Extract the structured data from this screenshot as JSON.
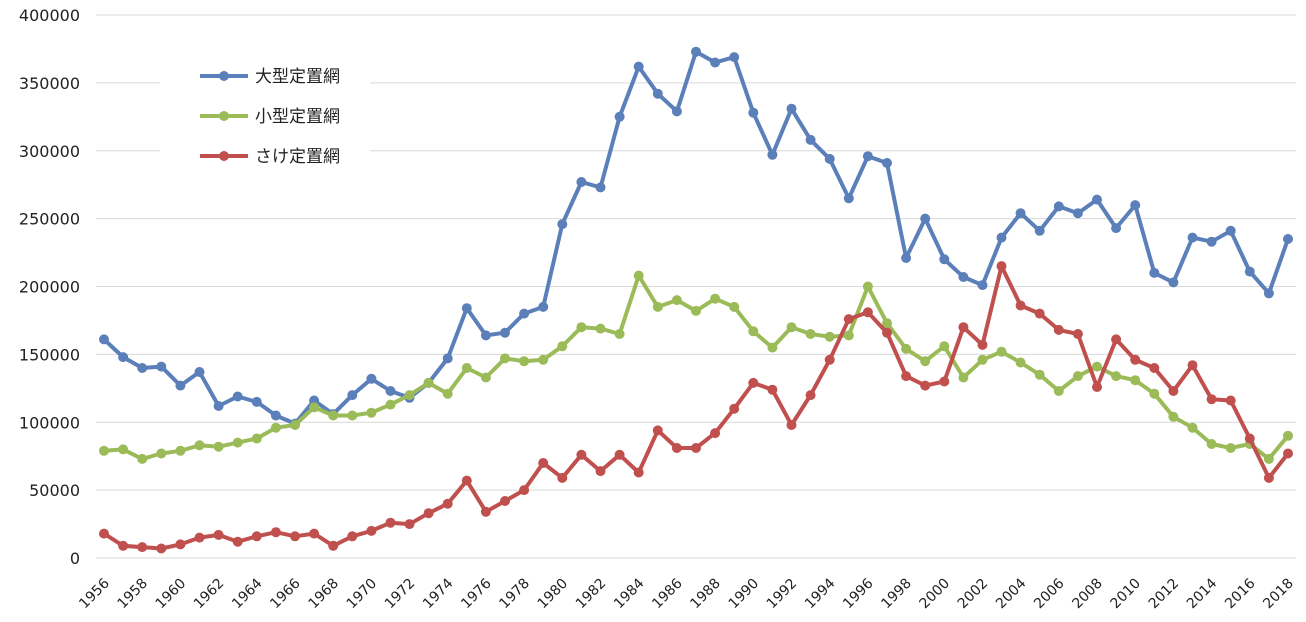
{
  "chart_data": {
    "type": "line",
    "title": "",
    "xlabel": "",
    "ylabel": "",
    "xlim": [
      1956,
      2018
    ],
    "ylim": [
      0,
      400000
    ],
    "y_ticks": [
      0,
      50000,
      100000,
      150000,
      200000,
      250000,
      300000,
      350000,
      400000
    ],
    "y_tick_labels": [
      "0",
      "50000",
      "100000",
      "150000",
      "200000",
      "250000",
      "300000",
      "350000",
      "400000"
    ],
    "x_ticks": [
      1956,
      1958,
      1960,
      1962,
      1964,
      1966,
      1968,
      1970,
      1972,
      1974,
      1976,
      1978,
      1980,
      1982,
      1984,
      1986,
      1988,
      1990,
      1992,
      1994,
      1996,
      1998,
      2000,
      2002,
      2004,
      2006,
      2008,
      2010,
      2012,
      2014,
      2016,
      2018
    ],
    "x_tick_labels": [
      "1956",
      "1958",
      "1960",
      "1962",
      "1964",
      "1966",
      "1968",
      "1970",
      "1972",
      "1974",
      "1976",
      "1978",
      "1980",
      "1982",
      "1984",
      "1986",
      "1988",
      "1990",
      "1992",
      "1994",
      "1996",
      "1998",
      "2000",
      "2002",
      "2004",
      "2006",
      "2008",
      "2010",
      "2012",
      "2014",
      "2016",
      "2018"
    ],
    "grid": "horizontal",
    "legend_position": "top-left",
    "x": [
      1956,
      1957,
      1958,
      1959,
      1960,
      1961,
      1962,
      1963,
      1964,
      1965,
      1966,
      1967,
      1968,
      1969,
      1970,
      1971,
      1972,
      1973,
      1974,
      1975,
      1976,
      1977,
      1978,
      1979,
      1980,
      1981,
      1982,
      1983,
      1984,
      1985,
      1986,
      1987,
      1988,
      1989,
      1990,
      1991,
      1992,
      1993,
      1994,
      1995,
      1996,
      1997,
      1998,
      1999,
      2000,
      2001,
      2002,
      2003,
      2004,
      2005,
      2006,
      2007,
      2008,
      2009,
      2010,
      2011,
      2012,
      2013,
      2014,
      2015,
      2016,
      2017,
      2018
    ],
    "series": [
      {
        "name": "大型定置網",
        "color": "#5b7fb8",
        "values": [
          161000,
          148000,
          140000,
          141000,
          127000,
          137000,
          112000,
          119000,
          115000,
          105000,
          99000,
          116000,
          106000,
          120000,
          132000,
          123000,
          118000,
          129000,
          147000,
          184000,
          164000,
          166000,
          180000,
          185000,
          246000,
          277000,
          273000,
          325000,
          362000,
          342000,
          329000,
          373000,
          365000,
          369000,
          328000,
          297000,
          331000,
          308000,
          294000,
          265000,
          296000,
          291000,
          221000,
          250000,
          220000,
          207000,
          201000,
          236000,
          254000,
          241000,
          259000,
          254000,
          264000,
          243000,
          260000,
          210000,
          203000,
          236000,
          233000,
          241000,
          211000,
          195000,
          235000
        ]
      },
      {
        "name": "小型定置網",
        "color": "#9bbb59",
        "values": [
          79000,
          80000,
          73000,
          77000,
          79000,
          83000,
          82000,
          85000,
          88000,
          96000,
          98000,
          111000,
          105000,
          105000,
          107000,
          113000,
          120000,
          129000,
          121000,
          140000,
          133000,
          147000,
          145000,
          146000,
          156000,
          170000,
          169000,
          165000,
          208000,
          185000,
          190000,
          182000,
          191000,
          185000,
          167000,
          155000,
          170000,
          165000,
          163000,
          164000,
          200000,
          173000,
          154000,
          145000,
          156000,
          133000,
          146000,
          152000,
          144000,
          135000,
          123000,
          134000,
          141000,
          134000,
          131000,
          121000,
          104000,
          96000,
          84000,
          81000,
          84000,
          73000,
          90000
        ]
      },
      {
        "name": "さけ定置網",
        "color": "#c0504d",
        "values": [
          18000,
          9000,
          8000,
          7000,
          10000,
          15000,
          17000,
          12000,
          16000,
          19000,
          16000,
          18000,
          9000,
          16000,
          20000,
          26000,
          25000,
          33000,
          40000,
          57000,
          34000,
          42000,
          50000,
          70000,
          59000,
          76000,
          64000,
          76000,
          63000,
          94000,
          81000,
          81000,
          92000,
          110000,
          129000,
          124000,
          98000,
          120000,
          146000,
          176000,
          181000,
          166000,
          134000,
          127000,
          130000,
          170000,
          157000,
          215000,
          186000,
          180000,
          168000,
          165000,
          126000,
          161000,
          146000,
          140000,
          123000,
          142000,
          117000,
          116000,
          88000,
          59000,
          77000
        ]
      }
    ]
  }
}
